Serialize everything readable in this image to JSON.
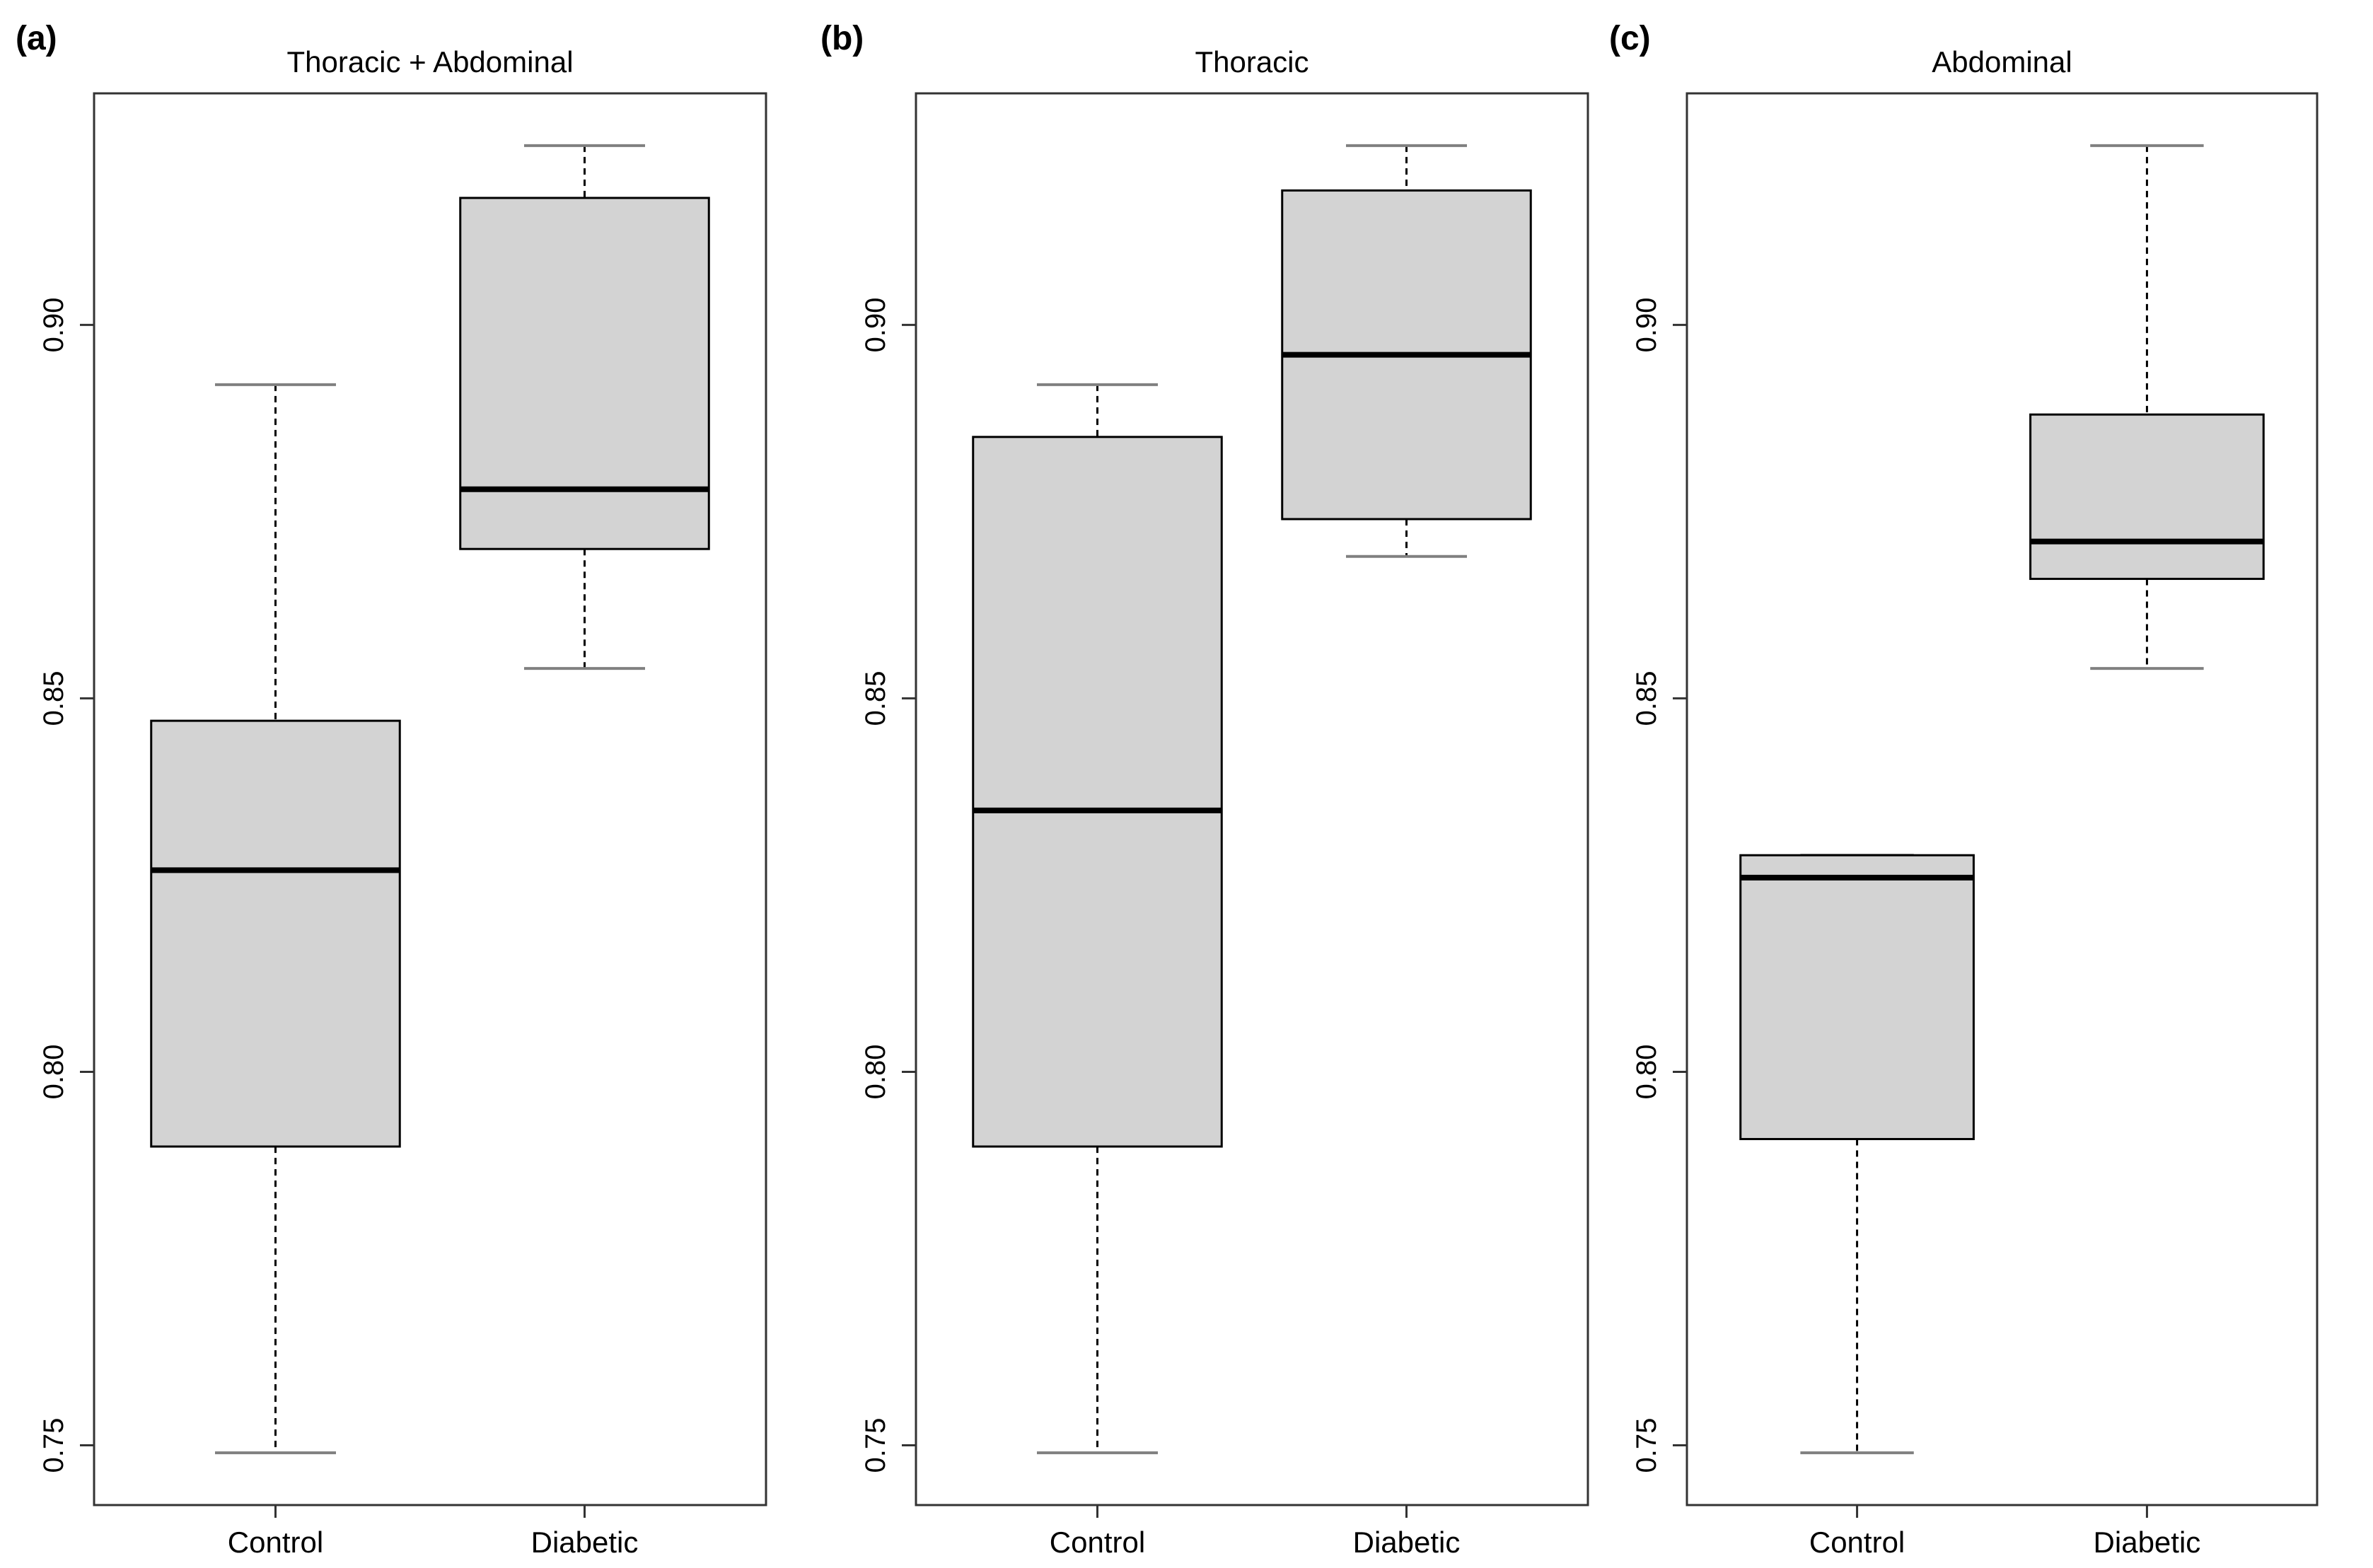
{
  "chart_data": [
    {
      "panel": "(a)",
      "title": "Thoracic + Abdominal",
      "type": "boxplot",
      "categories": [
        "Control",
        "Diabetic"
      ],
      "ylim": [
        0.742,
        0.931
      ],
      "yticks": [
        0.75,
        0.8,
        0.85,
        0.9
      ],
      "ytick_labels": [
        "0.75",
        "0.80",
        "0.85",
        "0.90"
      ],
      "boxes": [
        {
          "name": "Control",
          "min": 0.749,
          "q1": 0.79,
          "median": 0.827,
          "q3": 0.847,
          "max": 0.892
        },
        {
          "name": "Diabetic",
          "min": 0.854,
          "q1": 0.87,
          "median": 0.878,
          "q3": 0.917,
          "max": 0.924
        }
      ]
    },
    {
      "panel": "(b)",
      "title": "Thoracic",
      "type": "boxplot",
      "categories": [
        "Control",
        "Diabetic"
      ],
      "ylim": [
        0.742,
        0.931
      ],
      "yticks": [
        0.75,
        0.8,
        0.85,
        0.9
      ],
      "ytick_labels": [
        "0.75",
        "0.80",
        "0.85",
        "0.90"
      ],
      "boxes": [
        {
          "name": "Control",
          "min": 0.749,
          "q1": 0.79,
          "median": 0.835,
          "q3": 0.885,
          "max": 0.892
        },
        {
          "name": "Diabetic",
          "min": 0.869,
          "q1": 0.874,
          "median": 0.896,
          "q3": 0.918,
          "max": 0.924
        }
      ]
    },
    {
      "panel": "(c)",
      "title": "Abdominal",
      "type": "boxplot",
      "categories": [
        "Control",
        "Diabetic"
      ],
      "ylim": [
        0.742,
        0.931
      ],
      "yticks": [
        0.75,
        0.8,
        0.85,
        0.9
      ],
      "ytick_labels": [
        "0.75",
        "0.80",
        "0.85",
        "0.90"
      ],
      "boxes": [
        {
          "name": "Control",
          "min": 0.749,
          "q1": 0.791,
          "median": 0.826,
          "q3": 0.829,
          "max": 0.829
        },
        {
          "name": "Diabetic",
          "min": 0.854,
          "q1": 0.866,
          "median": 0.871,
          "q3": 0.888,
          "max": 0.924
        }
      ]
    }
  ],
  "colors": {
    "box_fill": "#d3d3d3",
    "line": "#000000",
    "whisker_cap": "#808080",
    "frame": "#333333"
  }
}
